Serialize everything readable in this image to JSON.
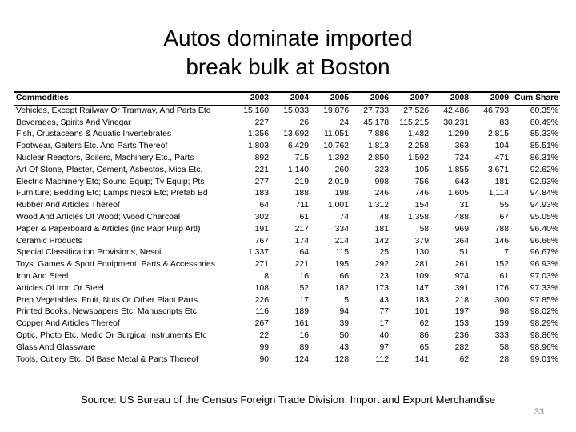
{
  "slide": {
    "title_line1": "Autos dominate imported",
    "title_line2": "break bulk at Boston",
    "source": "Source: US Bureau of the Census Foreign Trade Division, Import and Export Merchandise",
    "page_number": "33"
  },
  "table": {
    "headers": [
      "Commodities",
      "2003",
      "2004",
      "2005",
      "2006",
      "2007",
      "2008",
      "2009",
      "Cum Share"
    ],
    "rows": [
      [
        "Vehicles, Except Railway Or Tramway, And Parts Etc",
        "15,160",
        "15,033",
        "19,876",
        "27,733",
        "27,526",
        "42,486",
        "46,793",
        "60.35%"
      ],
      [
        "Beverages, Spirits And Vinegar",
        "227",
        "26",
        "24",
        "45,178",
        "115,215",
        "30,231",
        "83",
        "80.49%"
      ],
      [
        "Fish, Crustaceans & Aquatic Invertebrates",
        "1,356",
        "13,692",
        "11,051",
        "7,886",
        "1,482",
        "1,299",
        "2,815",
        "85.33%"
      ],
      [
        "Footwear, Gaiters Etc. And Parts Thereof",
        "1,803",
        "6,429",
        "10,762",
        "1,813",
        "2,258",
        "363",
        "104",
        "85.51%"
      ],
      [
        "Nuclear Reactors, Boilers, Machinery Etc., Parts",
        "892",
        "715",
        "1,392",
        "2,850",
        "1,592",
        "724",
        "471",
        "86.31%"
      ],
      [
        "Art Of Stone, Plaster, Cement, Asbestos, Mica Etc.",
        "221",
        "1,140",
        "260",
        "323",
        "105",
        "1,855",
        "3,671",
        "92.62%"
      ],
      [
        "Electric Machinery Etc; Sound Equip; Tv Equip; Pts",
        "277",
        "219",
        "2,019",
        "998",
        "756",
        "643",
        "181",
        "92.93%"
      ],
      [
        "Furniture; Bedding Etc; Lamps Nesoi Etc; Prefab Bd",
        "183",
        "188",
        "198",
        "246",
        "746",
        "1,605",
        "1,114",
        "94.84%"
      ],
      [
        "Rubber And Articles Thereof",
        "64",
        "711",
        "1,001",
        "1,312",
        "154",
        "31",
        "55",
        "94.93%"
      ],
      [
        "Wood And Articles Of Wood; Wood Charcoal",
        "302",
        "61",
        "74",
        "48",
        "1,358",
        "488",
        "67",
        "95.05%"
      ],
      [
        "Paper & Paperboard & Articles (inc Papr Pulp Artl)",
        "191",
        "217",
        "334",
        "181",
        "58",
        "969",
        "788",
        "96.40%"
      ],
      [
        "Ceramic Products",
        "767",
        "174",
        "214",
        "142",
        "379",
        "364",
        "146",
        "96.66%"
      ],
      [
        "Special Classification Provisions, Nesoi",
        "1,337",
        "64",
        "115",
        "25",
        "130",
        "51",
        "7",
        "96.67%"
      ],
      [
        "Toys, Games & Sport Equipment; Parts & Accessories",
        "271",
        "221",
        "195",
        "292",
        "281",
        "261",
        "152",
        "96.93%"
      ],
      [
        "Iron And Steel",
        "8",
        "16",
        "66",
        "23",
        "109",
        "974",
        "61",
        "97.03%"
      ],
      [
        "Articles Of Iron Or Steel",
        "108",
        "52",
        "182",
        "173",
        "147",
        "391",
        "176",
        "97.33%"
      ],
      [
        "Prep Vegetables, Fruit, Nuts Or Other Plant Parts",
        "226",
        "17",
        "5",
        "43",
        "183",
        "218",
        "300",
        "97.85%"
      ],
      [
        "Printed Books, Newspapers Etc; Manuscripts Etc",
        "116",
        "189",
        "94",
        "77",
        "101",
        "197",
        "98",
        "98.02%"
      ],
      [
        "Copper And Articles Thereof",
        "267",
        "161",
        "39",
        "17",
        "62",
        "153",
        "159",
        "98.29%"
      ],
      [
        "Optic, Photo Etc, Medic Or Surgical Instruments Etc",
        "22",
        "16",
        "50",
        "40",
        "86",
        "236",
        "333",
        "98.86%"
      ],
      [
        "Glass And Glassware",
        "99",
        "89",
        "43",
        "97",
        "65",
        "282",
        "58",
        "98.96%"
      ],
      [
        "Tools, Cutlery Etc. Of Base Metal & Parts Thereof",
        "90",
        "124",
        "128",
        "112",
        "141",
        "62",
        "28",
        "99.01%"
      ]
    ]
  }
}
